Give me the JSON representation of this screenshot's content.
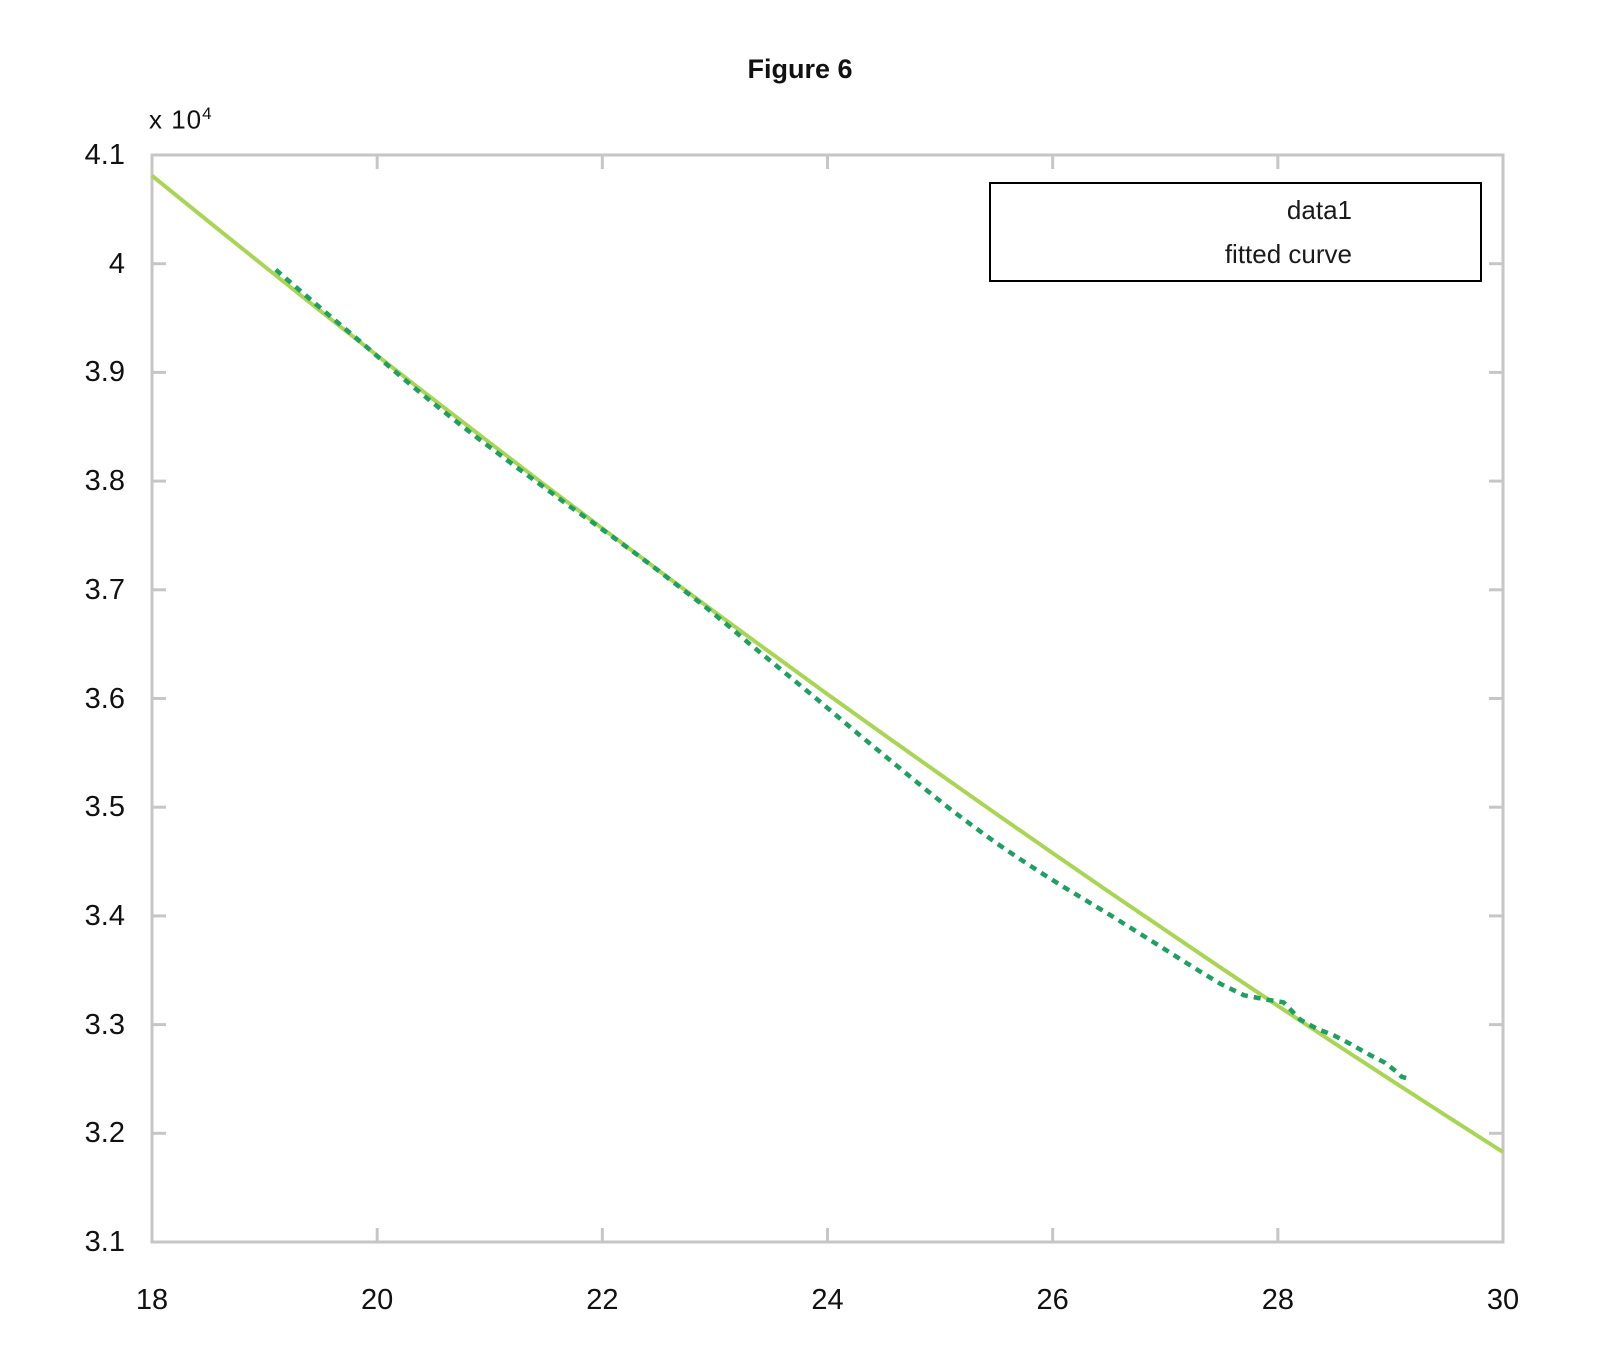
{
  "page": {
    "background": "#ffffff"
  },
  "chart_data": {
    "type": "line",
    "title": "Figure 6",
    "grid": false,
    "axis_color": "#c6c6c6",
    "text_color": "#111111",
    "x_axis": {
      "range": [
        18,
        30
      ],
      "ticks": [
        {
          "label": "18",
          "value": 18
        },
        {
          "label": "20",
          "value": 20
        },
        {
          "label": "22",
          "value": 22
        },
        {
          "label": "24",
          "value": 24
        },
        {
          "label": "26",
          "value": 26
        },
        {
          "label": "28",
          "value": 28
        },
        {
          "label": "30",
          "value": 30
        }
      ]
    },
    "y_axis": {
      "range": [
        31000,
        41000
      ],
      "multiplier_base": "x 10",
      "multiplier_exp": "4",
      "ticks": [
        {
          "label": "4.1",
          "value": 41000
        },
        {
          "label": "4",
          "value": 40000
        },
        {
          "label": "3.9",
          "value": 39000
        },
        {
          "label": "3.8",
          "value": 38000
        },
        {
          "label": "3.7",
          "value": 37000
        },
        {
          "label": "3.6",
          "value": 36000
        },
        {
          "label": "3.5",
          "value": 35000
        },
        {
          "label": "3.4",
          "value": 34000
        },
        {
          "label": "3.3",
          "value": 33000
        },
        {
          "label": "3.2",
          "value": 32000
        },
        {
          "label": "3.1",
          "value": 31000
        }
      ]
    },
    "legend": {
      "position": "top-right",
      "border_color": "#000000",
      "items": [
        {
          "label": "data1"
        },
        {
          "label": "fitted curve"
        }
      ]
    },
    "series": [
      {
        "name": "data1",
        "line_style": "dotted",
        "color": "#1f9f62",
        "line_width": 4.5,
        "z": 2,
        "points": [
          [
            19.1,
            39945
          ],
          [
            19.3,
            39765
          ],
          [
            19.5,
            39590
          ],
          [
            19.7,
            39415
          ],
          [
            19.9,
            39240
          ],
          [
            20.1,
            39060
          ],
          [
            20.3,
            38885
          ],
          [
            20.5,
            38715
          ],
          [
            20.7,
            38550
          ],
          [
            20.9,
            38390
          ],
          [
            21.1,
            38235
          ],
          [
            21.3,
            38080
          ],
          [
            21.5,
            37930
          ],
          [
            21.7,
            37775
          ],
          [
            21.9,
            37630
          ],
          [
            22.1,
            37480
          ],
          [
            22.3,
            37330
          ],
          [
            22.5,
            37175
          ],
          [
            22.7,
            37015
          ],
          [
            22.9,
            36855
          ],
          [
            23.1,
            36685
          ],
          [
            23.3,
            36510
          ],
          [
            23.5,
            36340
          ],
          [
            23.7,
            36170
          ],
          [
            23.9,
            36000
          ],
          [
            24.1,
            35825
          ],
          [
            24.3,
            35650
          ],
          [
            24.5,
            35480
          ],
          [
            24.7,
            35310
          ],
          [
            24.9,
            35140
          ],
          [
            25.1,
            34975
          ],
          [
            25.3,
            34820
          ],
          [
            25.5,
            34670
          ],
          [
            25.7,
            34530
          ],
          [
            25.9,
            34395
          ],
          [
            26.1,
            34265
          ],
          [
            26.3,
            34140
          ],
          [
            26.5,
            34015
          ],
          [
            26.7,
            33885
          ],
          [
            26.9,
            33755
          ],
          [
            27.1,
            33625
          ],
          [
            27.3,
            33495
          ],
          [
            27.5,
            33370
          ],
          [
            27.7,
            33270
          ],
          [
            27.9,
            33230
          ],
          [
            28.05,
            33205
          ],
          [
            28.2,
            33045
          ],
          [
            28.35,
            32960
          ],
          [
            28.5,
            32900
          ],
          [
            28.65,
            32820
          ],
          [
            28.8,
            32730
          ],
          [
            28.95,
            32650
          ],
          [
            29.05,
            32570
          ],
          [
            29.1,
            32520
          ],
          [
            29.15,
            32505
          ]
        ]
      },
      {
        "name": "fitted curve",
        "line_style": "solid",
        "color": "#a9d554",
        "line_width": 4,
        "z": 1,
        "points": [
          [
            18.0,
            40810
          ],
          [
            18.5,
            40390
          ],
          [
            19.0,
            39974
          ],
          [
            19.5,
            39562
          ],
          [
            20.0,
            39155
          ],
          [
            20.5,
            38751
          ],
          [
            21.0,
            38352
          ],
          [
            21.5,
            37956
          ],
          [
            22.0,
            37566
          ],
          [
            22.5,
            37178
          ],
          [
            23.0,
            36795
          ],
          [
            23.5,
            36416
          ],
          [
            24.0,
            36040
          ],
          [
            24.5,
            35669
          ],
          [
            25.0,
            35302
          ],
          [
            25.5,
            34937
          ],
          [
            26.0,
            34578
          ],
          [
            26.5,
            34221
          ],
          [
            27.0,
            33869
          ],
          [
            27.5,
            33519
          ],
          [
            28.0,
            33173
          ],
          [
            28.5,
            32831
          ],
          [
            29.0,
            32493
          ],
          [
            29.5,
            32158
          ],
          [
            30.0,
            31827
          ]
        ]
      }
    ]
  }
}
